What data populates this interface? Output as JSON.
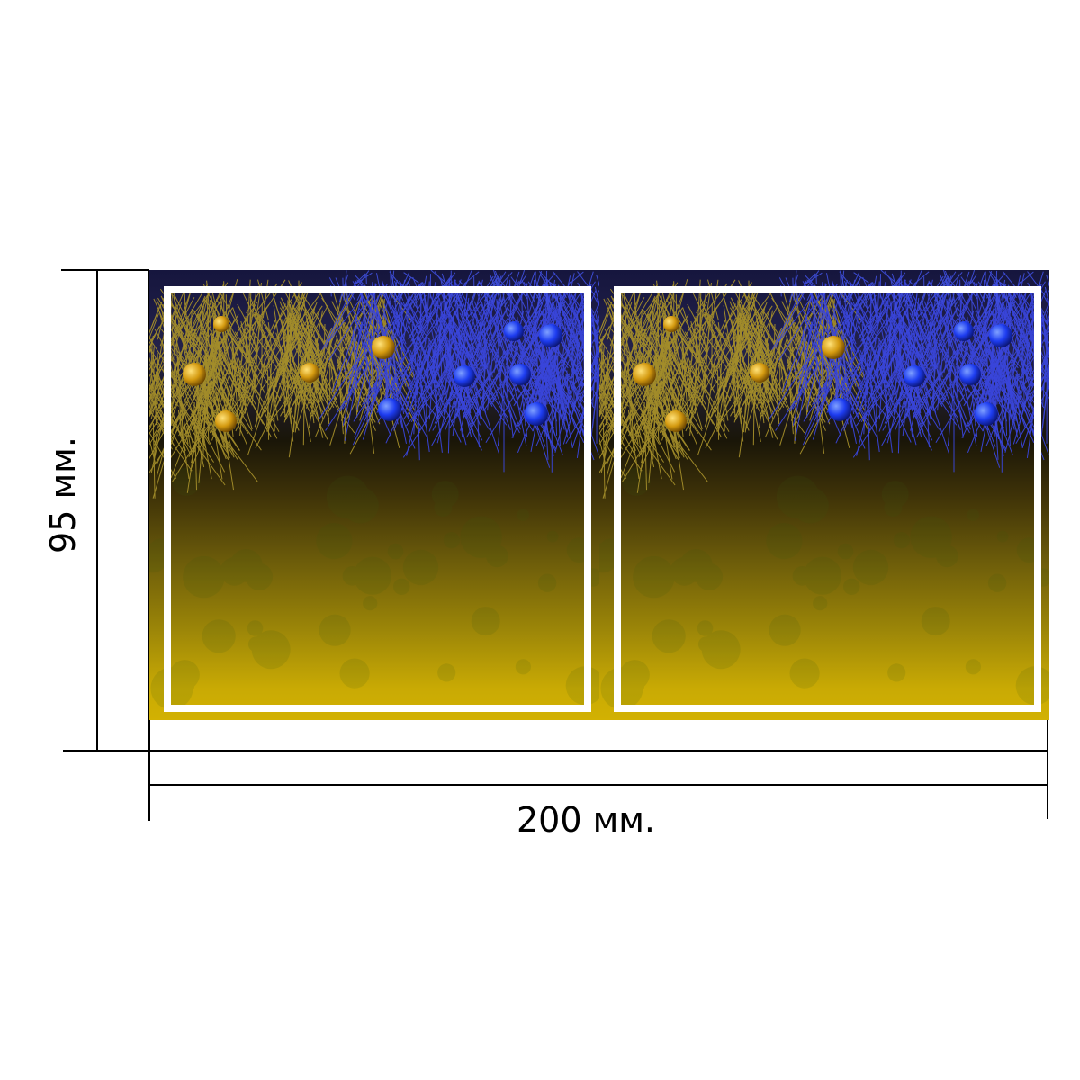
{
  "dimensions": {
    "width_label": "200 мм.",
    "height_label": "95 мм."
  },
  "banner": {
    "panel_count": 2,
    "colors": {
      "yellow": "#d2b102",
      "blue": "#2233cc",
      "dark": "#1a1608",
      "gold_branch": "#a48e2a",
      "blue_branch": "#3a46dc",
      "frame": "#ffffff"
    }
  }
}
